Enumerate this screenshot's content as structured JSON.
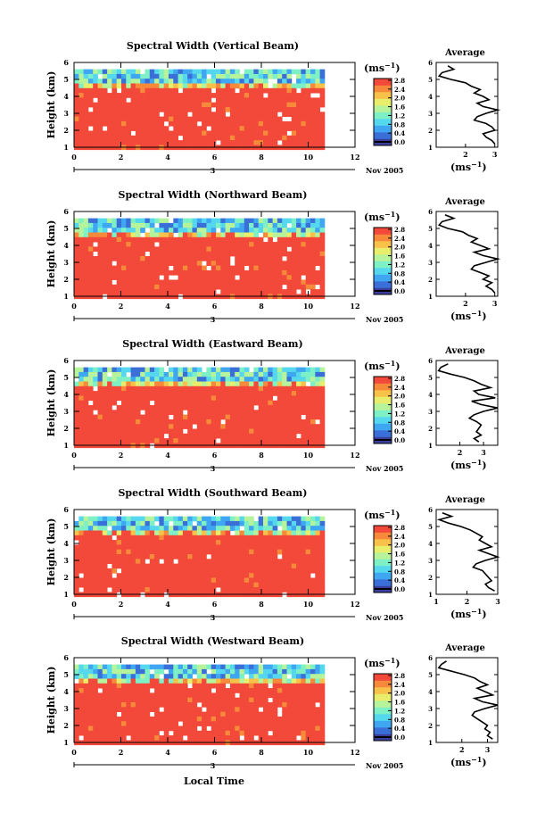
{
  "figure": {
    "x_axis_title": "Local Time",
    "date_start": "3",
    "date_end": "Nov 2005",
    "colorbar_unit": "(ms",
    "colorbar_unit_sup": "−1",
    "avg_title": "Average",
    "avg_xlabel": "(ms",
    "avg_xlabel_sup": "−1",
    "ylabel": "Height (km)",
    "colors": [
      "#3a3e9a",
      "#3a6fd8",
      "#3fa6f2",
      "#55d7ee",
      "#7ef0c6",
      "#b7f39a",
      "#e8ee6c",
      "#f8c14a",
      "#f7893a",
      "#f2493a"
    ]
  },
  "chart_data": [
    {
      "type": "heatmap",
      "title": "Spectral Width (Vertical Beam)",
      "xlim": [
        0,
        12
      ],
      "ylim": [
        1,
        6
      ],
      "xticks": [
        "0",
        "2",
        "4",
        "6",
        "8",
        "10",
        "12"
      ],
      "yticks": [
        "1",
        "2",
        "3",
        "4",
        "5",
        "6"
      ],
      "colorbar_ticks": [
        "2.8",
        "2.4",
        "2.0",
        "1.6",
        "1.2",
        "0.8",
        "0.4",
        "0.0"
      ],
      "data_extent_x": [
        0,
        10.5
      ],
      "data_extent_y": [
        1,
        5.6
      ],
      "average_profile": {
        "xlim": [
          1,
          3.1
        ],
        "xticks": [
          "2",
          "3"
        ],
        "ylim": [
          1,
          6
        ],
        "yticks": [
          "1",
          "2",
          "3",
          "4",
          "5",
          "6"
        ],
        "x": [
          1.4,
          1.6,
          1.2,
          1.1,
          1.5,
          2.0,
          2.2,
          2.5,
          2.3,
          2.6,
          2.8,
          2.4,
          2.6,
          3.1,
          2.7,
          2.4,
          2.3,
          2.7,
          2.9,
          3.0,
          2.6,
          2.7,
          2.9,
          3.0
        ],
        "y": [
          5.8,
          5.6,
          5.4,
          5.2,
          5.0,
          4.8,
          4.6,
          4.4,
          4.2,
          4.0,
          3.8,
          3.6,
          3.4,
          3.2,
          3.0,
          2.8,
          2.6,
          2.4,
          2.2,
          2.0,
          1.8,
          1.6,
          1.4,
          1.2
        ]
      }
    },
    {
      "type": "heatmap",
      "title": "Spectral Width (Northward Beam)",
      "xlim": [
        0,
        12
      ],
      "ylim": [
        1,
        6
      ],
      "xticks": [
        "0",
        "2",
        "4",
        "6",
        "8",
        "10",
        "12"
      ],
      "yticks": [
        "1",
        "2",
        "3",
        "4",
        "5",
        "6"
      ],
      "colorbar_ticks": [
        "2.8",
        "2.4",
        "2.0",
        "1.6",
        "1.2",
        "0.8",
        "0.4",
        "0.0"
      ],
      "data_extent_x": [
        0,
        10.5
      ],
      "data_extent_y": [
        1,
        5.6
      ],
      "average_profile": {
        "xlim": [
          1,
          3.1
        ],
        "xticks": [
          "2",
          "3"
        ],
        "ylim": [
          1,
          6
        ],
        "yticks": [
          "1",
          "2",
          "3",
          "4",
          "5",
          "6"
        ],
        "x": [
          1.3,
          1.6,
          1.2,
          1.1,
          1.4,
          1.9,
          2.1,
          2.4,
          2.2,
          2.5,
          2.8,
          2.3,
          2.6,
          3.1,
          2.7,
          2.3,
          2.2,
          2.5,
          2.8,
          2.6,
          2.9,
          2.7,
          2.9,
          3.0
        ],
        "y": [
          5.8,
          5.6,
          5.4,
          5.2,
          5.0,
          4.8,
          4.6,
          4.4,
          4.2,
          4.0,
          3.8,
          3.6,
          3.4,
          3.2,
          3.0,
          2.8,
          2.6,
          2.4,
          2.2,
          2.0,
          1.8,
          1.6,
          1.4,
          1.2
        ]
      }
    },
    {
      "type": "heatmap",
      "title": "Spectral Width (Eastward Beam)",
      "xlim": [
        0,
        12
      ],
      "ylim": [
        1,
        6
      ],
      "xticks": [
        "0",
        "2",
        "4",
        "6",
        "8",
        "10",
        "12"
      ],
      "yticks": [
        "1",
        "2",
        "3",
        "4",
        "5",
        "6"
      ],
      "colorbar_ticks": [
        "2.8",
        "2.4",
        "2.0",
        "1.6",
        "1.2",
        "0.8",
        "0.4",
        "0.0"
      ],
      "data_extent_x": [
        0,
        10.5
      ],
      "data_extent_y": [
        1,
        5.6
      ],
      "average_profile": {
        "xlim": [
          1,
          3.6
        ],
        "xticks": [
          "2",
          "3"
        ],
        "ylim": [
          1,
          6
        ],
        "yticks": [
          "1",
          "2",
          "3",
          "4",
          "5",
          "6"
        ],
        "x": [
          1.5,
          1.2,
          1.1,
          1.6,
          2.2,
          2.6,
          2.9,
          3.3,
          2.6,
          2.8,
          3.5,
          2.5,
          2.9,
          3.6,
          3.0,
          2.6,
          2.4,
          2.7,
          2.9,
          2.8,
          2.7,
          2.9,
          2.6,
          2.8
        ],
        "y": [
          5.8,
          5.6,
          5.4,
          5.2,
          5.0,
          4.8,
          4.6,
          4.4,
          4.2,
          4.0,
          3.8,
          3.6,
          3.4,
          3.2,
          3.0,
          2.8,
          2.6,
          2.4,
          2.2,
          2.0,
          1.8,
          1.6,
          1.4,
          1.2
        ]
      }
    },
    {
      "type": "heatmap",
      "title": "Spectral Width (Southward Beam)",
      "xlim": [
        0,
        12
      ],
      "ylim": [
        1,
        6
      ],
      "xticks": [
        "0",
        "2",
        "4",
        "6",
        "8",
        "10",
        "12"
      ],
      "yticks": [
        "1",
        "2",
        "3",
        "4",
        "5",
        "6"
      ],
      "colorbar_ticks": [
        "2.8",
        "2.4",
        "2.0",
        "1.6",
        "1.2",
        "0.8",
        "0.4",
        "0.0"
      ],
      "data_extent_x": [
        0,
        10.5
      ],
      "data_extent_y": [
        1,
        5.6
      ],
      "average_profile": {
        "xlim": [
          1,
          3.0
        ],
        "xticks": [
          "1",
          "2",
          "3"
        ],
        "ylim": [
          1,
          6
        ],
        "yticks": [
          "1",
          "2",
          "3",
          "4",
          "5",
          "6"
        ],
        "x": [
          1.2,
          1.5,
          1.1,
          1.4,
          1.8,
          2.1,
          2.3,
          2.5,
          2.4,
          2.6,
          2.8,
          2.4,
          2.7,
          3.0,
          2.6,
          2.3,
          2.2,
          2.5,
          2.6,
          2.7,
          2.8,
          2.6,
          2.7,
          2.9
        ],
        "y": [
          5.8,
          5.6,
          5.4,
          5.2,
          5.0,
          4.8,
          4.6,
          4.4,
          4.2,
          4.0,
          3.8,
          3.6,
          3.4,
          3.2,
          3.0,
          2.8,
          2.6,
          2.4,
          2.2,
          2.0,
          1.8,
          1.6,
          1.4,
          1.2
        ]
      }
    },
    {
      "type": "heatmap",
      "title": "Spectral Width (Westward Beam)",
      "xlim": [
        0,
        12
      ],
      "ylim": [
        1,
        6
      ],
      "xticks": [
        "0",
        "2",
        "4",
        "6",
        "8",
        "10",
        "12"
      ],
      "yticks": [
        "1",
        "2",
        "3",
        "4",
        "5",
        "6"
      ],
      "colorbar_ticks": [
        "2.8",
        "2.4",
        "2.0",
        "1.6",
        "1.2",
        "0.8",
        "0.4",
        "0.0"
      ],
      "data_extent_x": [
        0,
        10.5
      ],
      "data_extent_y": [
        1,
        5.6
      ],
      "average_profile": {
        "xlim": [
          1,
          3.4
        ],
        "xticks": [
          "2",
          "3"
        ],
        "ylim": [
          1,
          6
        ],
        "yticks": [
          "1",
          "2",
          "3",
          "4",
          "5",
          "6"
        ],
        "x": [
          1.4,
          1.2,
          1.1,
          1.6,
          2.1,
          2.5,
          2.7,
          3.0,
          2.6,
          2.9,
          3.2,
          2.5,
          2.8,
          3.4,
          2.9,
          2.5,
          2.4,
          2.6,
          2.8,
          3.0,
          2.9,
          3.1,
          3.0,
          3.2
        ],
        "y": [
          5.8,
          5.6,
          5.4,
          5.2,
          5.0,
          4.8,
          4.6,
          4.4,
          4.2,
          4.0,
          3.8,
          3.6,
          3.4,
          3.2,
          3.0,
          2.8,
          2.6,
          2.4,
          2.2,
          2.0,
          1.8,
          1.6,
          1.4,
          1.2
        ]
      }
    }
  ]
}
